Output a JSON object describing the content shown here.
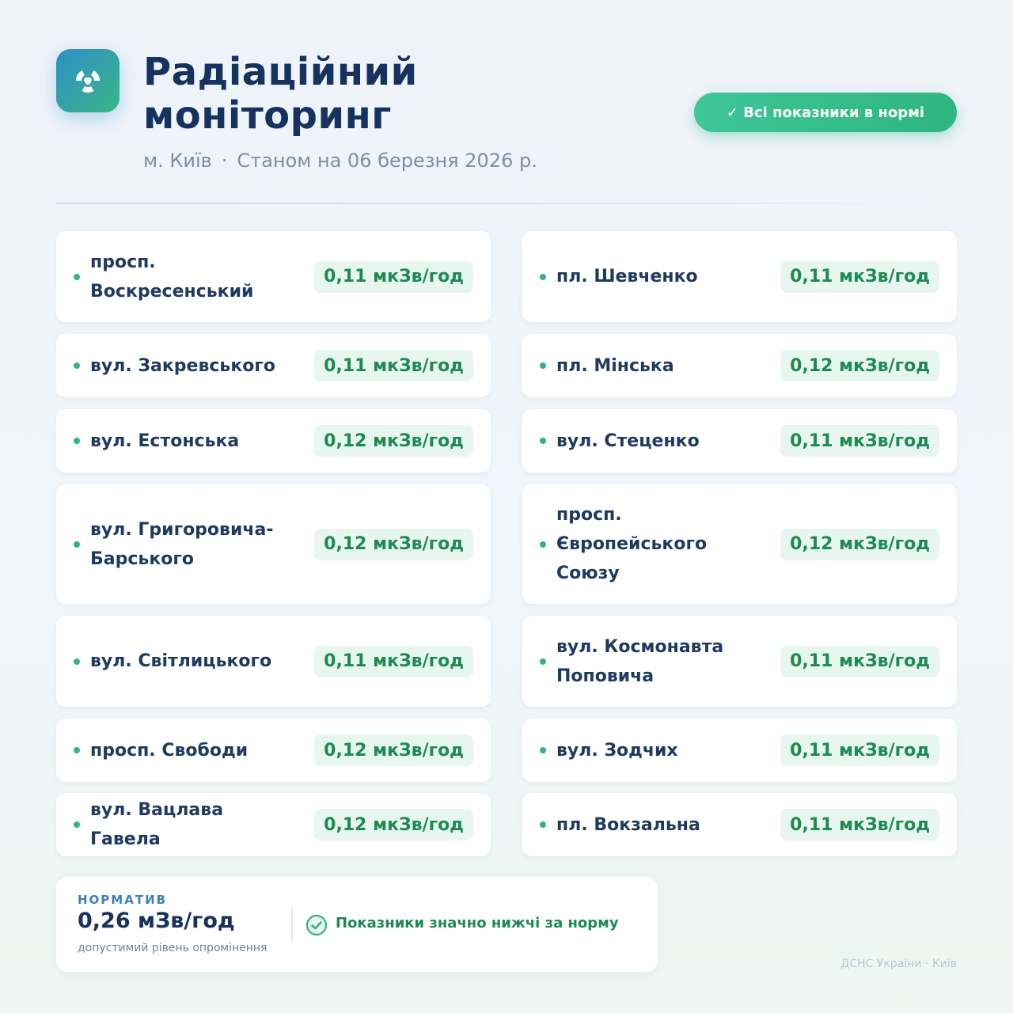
{
  "header": {
    "title": "Радіаційний моніторинг",
    "city": "м. Київ",
    "separator": "·",
    "date_text": "Станом на 06 березня 2026 р."
  },
  "status_pill": {
    "label": "✓ Всі показники в нормі"
  },
  "colors": {
    "accent_green": "#2fb57e",
    "brand_blue": "#2f8fc9",
    "title": "#16325e"
  },
  "icons": {
    "logo": "radiation-icon",
    "check": "check-circle-icon"
  },
  "locations": {
    "left": [
      {
        "name": "просп. Воскресенський",
        "value": "0,11 мкЗв/год"
      },
      {
        "name": "вул. Закревського",
        "value": "0,11 мкЗв/год"
      },
      {
        "name": "вул. Естонська",
        "value": "0,12 мкЗв/год"
      },
      {
        "name": "вул. Григоровича-Барського",
        "value": "0,12 мкЗв/год"
      },
      {
        "name": "вул. Світлицького",
        "value": "0,11 мкЗв/год"
      },
      {
        "name": "просп. Свободи",
        "value": "0,12 мкЗв/год"
      },
      {
        "name": "вул. Вацлава Гавела",
        "value": "0,12 мкЗв/год"
      }
    ],
    "right": [
      {
        "name": "пл. Шевченко",
        "value": "0,11 мкЗв/год"
      },
      {
        "name": "пл. Мінська",
        "value": "0,12 мкЗв/год"
      },
      {
        "name": "вул. Стеценко",
        "value": "0,11 мкЗв/год"
      },
      {
        "name": "просп. Європейського Союзу",
        "value": "0,12 мкЗв/год"
      },
      {
        "name": "вул. Космонавта Поповича",
        "value": "0,11 мкЗв/год"
      },
      {
        "name": "вул. Зодчих",
        "value": "0,11 мкЗв/год"
      },
      {
        "name": "пл. Вокзальна",
        "value": "0,11 мкЗв/год"
      }
    ]
  },
  "norm": {
    "label": "НОРМАТИВ",
    "value": "0,26 мЗв/год",
    "note": "допустимий рівень опромінення",
    "message": "Показники значно нижчі за норму"
  },
  "footer": {
    "source": "ДСНС України · Київ"
  }
}
